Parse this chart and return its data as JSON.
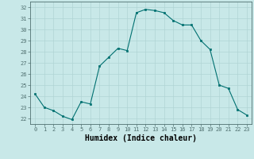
{
  "x": [
    0,
    1,
    2,
    3,
    4,
    5,
    6,
    7,
    8,
    9,
    10,
    11,
    12,
    13,
    14,
    15,
    16,
    17,
    18,
    19,
    20,
    21,
    22,
    23
  ],
  "y": [
    24.2,
    23.0,
    22.7,
    22.2,
    21.9,
    23.5,
    23.3,
    26.7,
    27.5,
    28.3,
    28.1,
    31.5,
    31.8,
    31.7,
    31.5,
    30.8,
    30.4,
    30.4,
    29.0,
    28.2,
    25.0,
    24.7,
    22.8,
    22.3
  ],
  "line_color": "#007070",
  "marker_color": "#007070",
  "bg_color": "#c8e8e8",
  "grid_color": "#b0d4d4",
  "xlabel": "Humidex (Indice chaleur)",
  "xlabel_fontsize": 7,
  "tick_fontsize": 5,
  "ylabel_ticks": [
    22,
    23,
    24,
    25,
    26,
    27,
    28,
    29,
    30,
    31,
    32
  ],
  "xticks": [
    0,
    1,
    2,
    3,
    4,
    5,
    6,
    7,
    8,
    9,
    10,
    11,
    12,
    13,
    14,
    15,
    16,
    17,
    18,
    19,
    20,
    21,
    22,
    23
  ],
  "ylim": [
    21.5,
    32.5
  ],
  "xlim": [
    -0.5,
    23.5
  ]
}
